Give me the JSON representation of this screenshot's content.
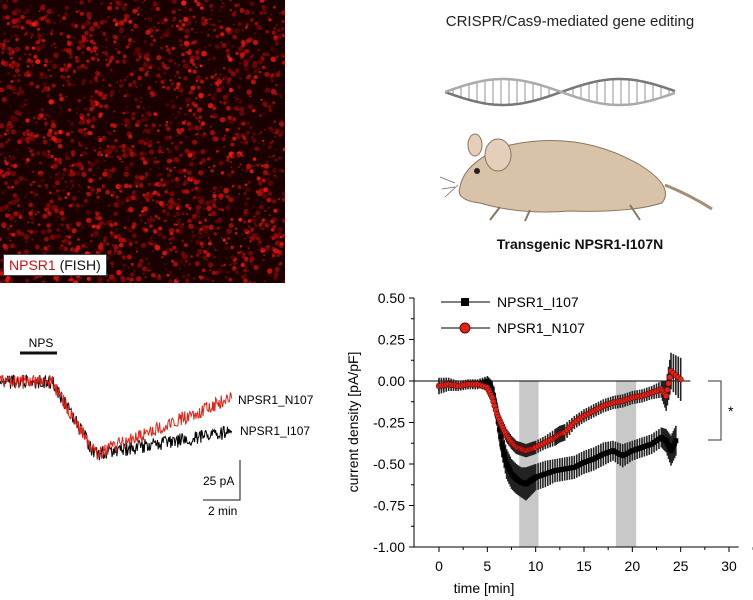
{
  "fish": {
    "gene": "NPSR1",
    "method": "(FISH)"
  },
  "illustration": {
    "title": "CRISPR/Cas9-mediated gene editing",
    "mouse_label": "Transgenic NPSR1-I107N"
  },
  "traces": {
    "stimulus_label": "NPS",
    "series": [
      {
        "name": "NPSR1_N107",
        "color": "#e02418"
      },
      {
        "name": "NPSR1_I107",
        "color": "#000000"
      }
    ],
    "scalebar_y": "25 pA",
    "scalebar_x": "2 min"
  },
  "chart_data": {
    "type": "line",
    "title": "",
    "xlabel": "time [min]",
    "ylabel": "current density [pA/pF]",
    "xlim": [
      -1.5,
      31
    ],
    "ylim": [
      -1.0,
      0.5
    ],
    "xticks": [
      "0",
      "5",
      "10",
      "15",
      "20",
      "25",
      "30"
    ],
    "yticks": [
      "0.50",
      "0.25",
      "0.00",
      "-0.25",
      "-0.50",
      "-0.75",
      "-1.00"
    ],
    "legend_position": "top-left",
    "shaded_windows": [
      [
        8.3,
        10.3
      ],
      [
        18.3,
        20.4
      ]
    ],
    "significance": "*",
    "series": [
      {
        "name": "NPSR1_I107",
        "color": "#000000",
        "marker": "square",
        "x": [
          0,
          1,
          2,
          3,
          4,
          5,
          5.5,
          6,
          6.5,
          7,
          7.5,
          8,
          8.5,
          9,
          9.5,
          10,
          11,
          12,
          13,
          14,
          15,
          16,
          17,
          18,
          19,
          20,
          21,
          22,
          23,
          23.5,
          24,
          24.5
        ],
        "y": [
          -0.03,
          -0.02,
          -0.03,
          -0.02,
          -0.02,
          0.0,
          -0.05,
          -0.2,
          -0.38,
          -0.5,
          -0.56,
          -0.59,
          -0.61,
          -0.62,
          -0.6,
          -0.58,
          -0.56,
          -0.54,
          -0.53,
          -0.52,
          -0.49,
          -0.47,
          -0.44,
          -0.42,
          -0.45,
          -0.42,
          -0.4,
          -0.38,
          -0.34,
          -0.36,
          -0.42,
          -0.36
        ],
        "err": [
          0.05,
          0.04,
          0.03,
          0.03,
          0.03,
          0.03,
          0.05,
          0.07,
          0.08,
          0.09,
          0.09,
          0.09,
          0.09,
          0.1,
          0.09,
          0.08,
          0.08,
          0.07,
          0.07,
          0.07,
          0.07,
          0.07,
          0.07,
          0.06,
          0.07,
          0.06,
          0.06,
          0.06,
          0.06,
          0.07,
          0.09,
          0.09
        ]
      },
      {
        "name": "NPSR1_N107",
        "color": "#e02418",
        "marker": "circle",
        "x": [
          0,
          1,
          2,
          3,
          4,
          5,
          5.5,
          6,
          6.5,
          7,
          7.5,
          8,
          8.5,
          9,
          9.5,
          10,
          11,
          12,
          12.5,
          13,
          14,
          15,
          16,
          17,
          18,
          19,
          20,
          21,
          22,
          23,
          23.5,
          24,
          25
        ],
        "y": [
          -0.03,
          -0.02,
          -0.03,
          -0.02,
          -0.02,
          -0.04,
          -0.1,
          -0.2,
          -0.27,
          -0.33,
          -0.37,
          -0.4,
          -0.41,
          -0.42,
          -0.41,
          -0.4,
          -0.37,
          -0.34,
          -0.32,
          -0.31,
          -0.25,
          -0.21,
          -0.18,
          -0.15,
          -0.13,
          -0.12,
          -0.1,
          -0.09,
          -0.07,
          -0.05,
          -0.09,
          0.06,
          0.01
        ],
        "err": [
          0.03,
          0.02,
          0.02,
          0.02,
          0.02,
          0.02,
          0.03,
          0.03,
          0.04,
          0.04,
          0.04,
          0.04,
          0.04,
          0.04,
          0.04,
          0.04,
          0.04,
          0.05,
          0.05,
          0.05,
          0.04,
          0.04,
          0.04,
          0.04,
          0.04,
          0.04,
          0.04,
          0.04,
          0.04,
          0.05,
          0.09,
          0.11,
          0.13
        ]
      }
    ]
  }
}
